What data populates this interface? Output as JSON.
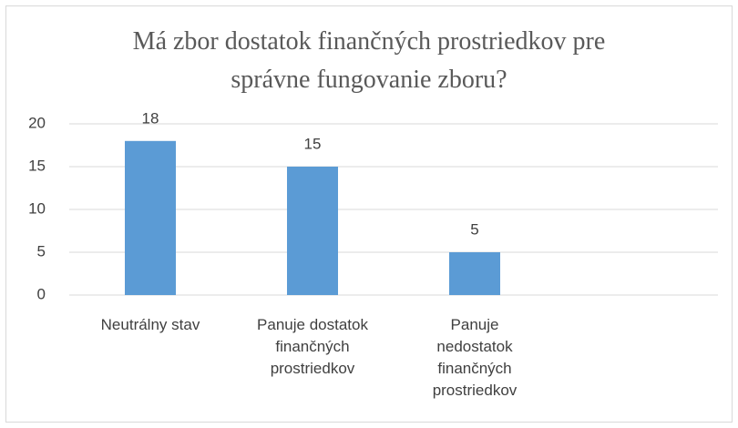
{
  "chart_data": {
    "type": "bar",
    "title": "Má zbor dostatok finančných prostriedkov pre správne fungovanie zboru?",
    "categories": [
      "Neutrálny stav",
      "Panuje dostatok finančných prostriedkov",
      "Panuje nedostatok finančných prostriedkov",
      null
    ],
    "values": [
      18,
      15,
      5,
      null
    ],
    "color": "#5b9bd5",
    "ylim": [
      0,
      20
    ],
    "yticks": [
      0,
      5,
      10,
      15,
      20
    ],
    "grid": true
  }
}
